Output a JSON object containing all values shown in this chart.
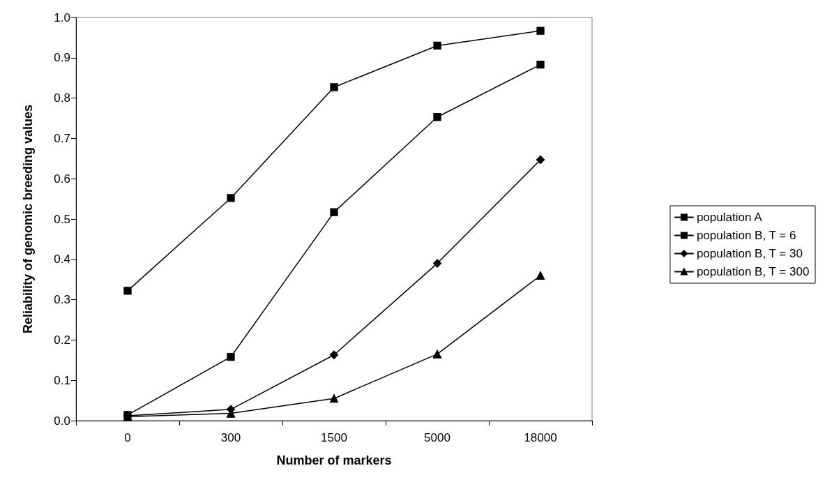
{
  "chart_data": {
    "type": "line",
    "xlabel": "Number of markers",
    "ylabel": "Reliability of genomic breeding values",
    "categories": [
      "0",
      "300",
      "1500",
      "5000",
      "18000"
    ],
    "ylim": [
      0,
      1
    ],
    "yticks": [
      {
        "value": 0,
        "label": "0.0"
      },
      {
        "value": 0.1,
        "label": "0.1"
      },
      {
        "value": 0.2,
        "label": "0.2"
      },
      {
        "value": 0.3,
        "label": "0.3"
      },
      {
        "value": 0.4,
        "label": "0.4"
      },
      {
        "value": 0.5,
        "label": "0.5"
      },
      {
        "value": 0.6,
        "label": "0.6"
      },
      {
        "value": 0.7,
        "label": "0.7"
      },
      {
        "value": 0.8,
        "label": "0.8"
      },
      {
        "value": 0.9,
        "label": "0.9"
      },
      {
        "value": 1,
        "label": "1.0"
      }
    ],
    "grid": false,
    "legend": "right",
    "line_style": "solid",
    "series": [
      {
        "name": "population A",
        "color": "#000000",
        "marker": "square",
        "values": [
          0.322,
          0.552,
          0.827,
          0.93,
          0.967
        ]
      },
      {
        "name": "population B, T = 6",
        "color": "#000000",
        "marker": "square",
        "values": [
          0.014,
          0.158,
          0.517,
          0.753,
          0.883
        ]
      },
      {
        "name": "population B, T = 30",
        "color": "#000000",
        "marker": "diamond",
        "values": [
          0.012,
          0.028,
          0.163,
          0.39,
          0.647
        ]
      },
      {
        "name": "population B, T = 300",
        "color": "#000000",
        "marker": "triangle",
        "values": [
          0.01,
          0.018,
          0.055,
          0.165,
          0.36
        ]
      }
    ]
  }
}
